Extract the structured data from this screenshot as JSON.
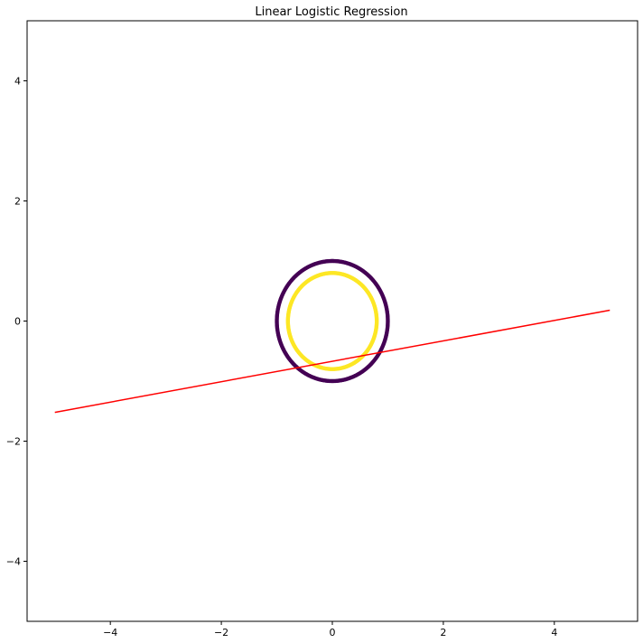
{
  "chart_data": {
    "type": "scatter",
    "title": "Linear Logistic Regression",
    "xlabel": "",
    "ylabel": "",
    "xlim": [
      -5.5,
      5.5
    ],
    "ylim": [
      -5,
      5
    ],
    "xticks": [
      -4,
      -2,
      0,
      2,
      4
    ],
    "yticks": [
      -4,
      -2,
      0,
      2,
      4
    ],
    "xtick_labels": [
      "−4",
      "−2",
      "0",
      "2",
      "4"
    ],
    "ytick_labels": [
      "−4",
      "−2",
      "0",
      "2",
      "4"
    ],
    "grid": false,
    "series": [
      {
        "kind": "circle-points",
        "center": [
          0,
          0
        ],
        "radius": 1.0,
        "color": "#440154"
      },
      {
        "kind": "circle-points",
        "center": [
          0,
          0
        ],
        "radius": 0.8,
        "color": "#fde725"
      },
      {
        "kind": "line",
        "x": [
          -5,
          5
        ],
        "y": [
          -1.52,
          0.18
        ],
        "color": "#ff0000"
      }
    ]
  }
}
